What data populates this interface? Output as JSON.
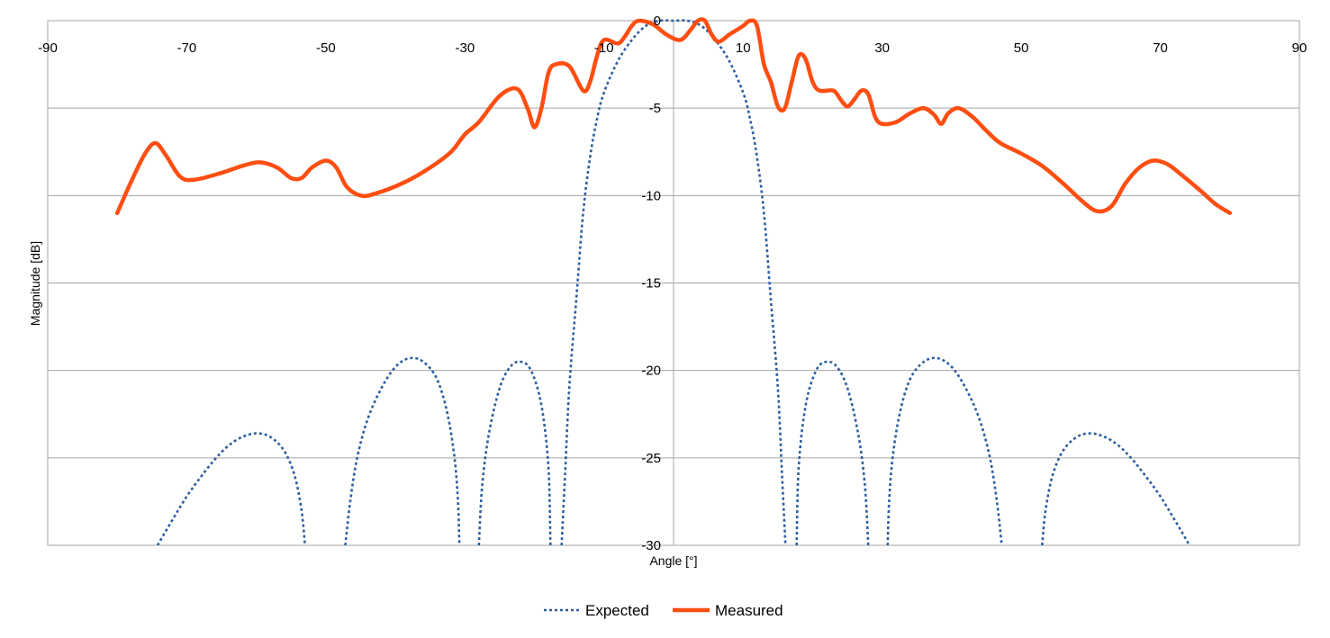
{
  "chart_data": {
    "type": "line",
    "xlabel": "Angle [°]",
    "ylabel": "Magnitude [dB]",
    "xlim": [
      -90,
      90
    ],
    "ylim": [
      -30,
      0
    ],
    "xticks": [
      -90,
      -70,
      -50,
      -30,
      -10,
      10,
      30,
      50,
      70,
      90
    ],
    "yticks": [
      0,
      -5,
      -10,
      -15,
      -20,
      -25,
      -30
    ],
    "grid": "horizontal",
    "legend_position": "bottom",
    "series": [
      {
        "name": "Expected",
        "color": "#2E5F9E",
        "style": "dotted",
        "segments": [
          [
            [
              -74.2,
              -30
            ],
            [
              -72,
              -28.5
            ],
            [
              -70,
              -27.2
            ],
            [
              -68,
              -26.1
            ],
            [
              -66,
              -25.1
            ],
            [
              -64,
              -24.3
            ],
            [
              -62,
              -23.8
            ],
            [
              -60,
              -23.6
            ],
            [
              -58,
              -23.8
            ],
            [
              -56,
              -24.6
            ],
            [
              -54.5,
              -26
            ],
            [
              -53.5,
              -28
            ],
            [
              -53,
              -30
            ]
          ],
          [
            [
              -47.2,
              -30
            ],
            [
              -46.5,
              -27.5
            ],
            [
              -45.5,
              -25
            ],
            [
              -44,
              -22.8
            ],
            [
              -42,
              -21
            ],
            [
              -40,
              -19.8
            ],
            [
              -38,
              -19.3
            ],
            [
              -36,
              -19.5
            ],
            [
              -34,
              -20.5
            ],
            [
              -32.5,
              -22.5
            ],
            [
              -31.5,
              -25
            ],
            [
              -31,
              -27.5
            ],
            [
              -30.8,
              -30
            ]
          ],
          [
            [
              -28,
              -30
            ],
            [
              -27.5,
              -26.5
            ],
            [
              -26.5,
              -23.5
            ],
            [
              -25,
              -21
            ],
            [
              -23.5,
              -19.8
            ],
            [
              -22,
              -19.5
            ],
            [
              -20.5,
              -20
            ],
            [
              -19,
              -22
            ],
            [
              -18,
              -25.5
            ],
            [
              -17.7,
              -30
            ]
          ],
          [
            [
              -16.1,
              -30
            ],
            [
              -15.6,
              -26
            ],
            [
              -15,
              -21
            ],
            [
              -14,
              -16
            ],
            [
              -13,
              -11
            ],
            [
              -12,
              -7.8
            ],
            [
              -11,
              -5.6
            ],
            [
              -10,
              -4.1
            ],
            [
              -8,
              -2.3
            ],
            [
              -6,
              -1.1
            ],
            [
              -4,
              -0.3
            ],
            [
              -2,
              0
            ],
            [
              0,
              0
            ],
            [
              2,
              0
            ],
            [
              4,
              -0.3
            ],
            [
              6,
              -1.1
            ],
            [
              8,
              -2.3
            ],
            [
              10,
              -4.1
            ],
            [
              11,
              -5.6
            ],
            [
              12,
              -7.8
            ],
            [
              13,
              -11
            ],
            [
              14,
              -16
            ],
            [
              15,
              -21
            ],
            [
              15.6,
              -26
            ],
            [
              16.1,
              -30
            ]
          ],
          [
            [
              17.7,
              -30
            ],
            [
              18,
              -25.5
            ],
            [
              19,
              -22
            ],
            [
              20.5,
              -20
            ],
            [
              22,
              -19.5
            ],
            [
              23.5,
              -19.8
            ],
            [
              25,
              -21
            ],
            [
              26.5,
              -23.5
            ],
            [
              27.5,
              -26.5
            ],
            [
              28,
              -30
            ]
          ],
          [
            [
              30.8,
              -30
            ],
            [
              31,
              -27.5
            ],
            [
              31.5,
              -25
            ],
            [
              32.5,
              -22.5
            ],
            [
              34,
              -20.5
            ],
            [
              36,
              -19.5
            ],
            [
              38,
              -19.3
            ],
            [
              40,
              -19.8
            ],
            [
              42,
              -21
            ],
            [
              44,
              -22.8
            ],
            [
              45.5,
              -25
            ],
            [
              46.5,
              -27.5
            ],
            [
              47.2,
              -30
            ]
          ],
          [
            [
              53,
              -30
            ],
            [
              53.5,
              -28
            ],
            [
              54.5,
              -26
            ],
            [
              56,
              -24.6
            ],
            [
              58,
              -23.8
            ],
            [
              60,
              -23.6
            ],
            [
              62,
              -23.8
            ],
            [
              64,
              -24.3
            ],
            [
              66,
              -25.1
            ],
            [
              68,
              -26.1
            ],
            [
              70,
              -27.2
            ],
            [
              72,
              -28.5
            ],
            [
              74.2,
              -30
            ]
          ]
        ]
      },
      {
        "name": "Measured",
        "color": "#FF4E11",
        "style": "solid",
        "points": [
          [
            -80,
            -11
          ],
          [
            -78,
            -9.2
          ],
          [
            -76,
            -7.6
          ],
          [
            -74.5,
            -7
          ],
          [
            -73,
            -7.7
          ],
          [
            -71,
            -8.9
          ],
          [
            -69,
            -9.1
          ],
          [
            -65,
            -8.7
          ],
          [
            -62,
            -8.3
          ],
          [
            -59.5,
            -8.1
          ],
          [
            -57,
            -8.4
          ],
          [
            -55,
            -9
          ],
          [
            -53.5,
            -9
          ],
          [
            -52,
            -8.4
          ],
          [
            -50,
            -8
          ],
          [
            -48.5,
            -8.4
          ],
          [
            -47,
            -9.5
          ],
          [
            -45,
            -10
          ],
          [
            -43,
            -9.9
          ],
          [
            -39,
            -9.3
          ],
          [
            -35,
            -8.4
          ],
          [
            -32,
            -7.5
          ],
          [
            -30,
            -6.5
          ],
          [
            -28,
            -5.8
          ],
          [
            -25,
            -4.3
          ],
          [
            -22.5,
            -3.9
          ],
          [
            -21,
            -5
          ],
          [
            -20,
            -6.1
          ],
          [
            -19,
            -5
          ],
          [
            -18,
            -3
          ],
          [
            -17,
            -2.5
          ],
          [
            -15,
            -2.6
          ],
          [
            -13,
            -4
          ],
          [
            -12,
            -3.5
          ],
          [
            -11,
            -2
          ],
          [
            -10,
            -1.1
          ],
          [
            -8,
            -1.3
          ],
          [
            -7,
            -0.9
          ],
          [
            -6,
            -0.3
          ],
          [
            -5,
            0
          ],
          [
            -3,
            -0.2
          ],
          [
            -1,
            -0.8
          ],
          [
            1,
            -1.1
          ],
          [
            2.5,
            -0.5
          ],
          [
            3.5,
            0
          ],
          [
            4.5,
            0
          ],
          [
            5.5,
            -0.8
          ],
          [
            6.5,
            -1.2
          ],
          [
            8,
            -0.8
          ],
          [
            10,
            -0.3
          ],
          [
            11,
            0
          ],
          [
            12,
            -0.3
          ],
          [
            13,
            -2.5
          ],
          [
            14,
            -3.5
          ],
          [
            15,
            -4.9
          ],
          [
            16,
            -5
          ],
          [
            17,
            -3.5
          ],
          [
            18,
            -2
          ],
          [
            19,
            -2.2
          ],
          [
            20,
            -3.5
          ],
          [
            21,
            -4
          ],
          [
            23,
            -4
          ],
          [
            24,
            -4.5
          ],
          [
            25,
            -4.9
          ],
          [
            26,
            -4.5
          ],
          [
            27,
            -4
          ],
          [
            28,
            -4.2
          ],
          [
            29,
            -5.5
          ],
          [
            30,
            -5.9
          ],
          [
            32,
            -5.8
          ],
          [
            34,
            -5.3
          ],
          [
            36,
            -5
          ],
          [
            37.5,
            -5.4
          ],
          [
            38.5,
            -5.9
          ],
          [
            39.5,
            -5.3
          ],
          [
            41,
            -5
          ],
          [
            43,
            -5.5
          ],
          [
            45,
            -6.3
          ],
          [
            47,
            -7
          ],
          [
            50,
            -7.6
          ],
          [
            53,
            -8.3
          ],
          [
            56,
            -9.3
          ],
          [
            59,
            -10.4
          ],
          [
            61,
            -10.9
          ],
          [
            63,
            -10.6
          ],
          [
            65,
            -9.3
          ],
          [
            67,
            -8.4
          ],
          [
            69,
            -8
          ],
          [
            71,
            -8.2
          ],
          [
            73,
            -8.8
          ],
          [
            76,
            -9.8
          ],
          [
            78,
            -10.5
          ],
          [
            80,
            -11
          ]
        ]
      }
    ]
  }
}
